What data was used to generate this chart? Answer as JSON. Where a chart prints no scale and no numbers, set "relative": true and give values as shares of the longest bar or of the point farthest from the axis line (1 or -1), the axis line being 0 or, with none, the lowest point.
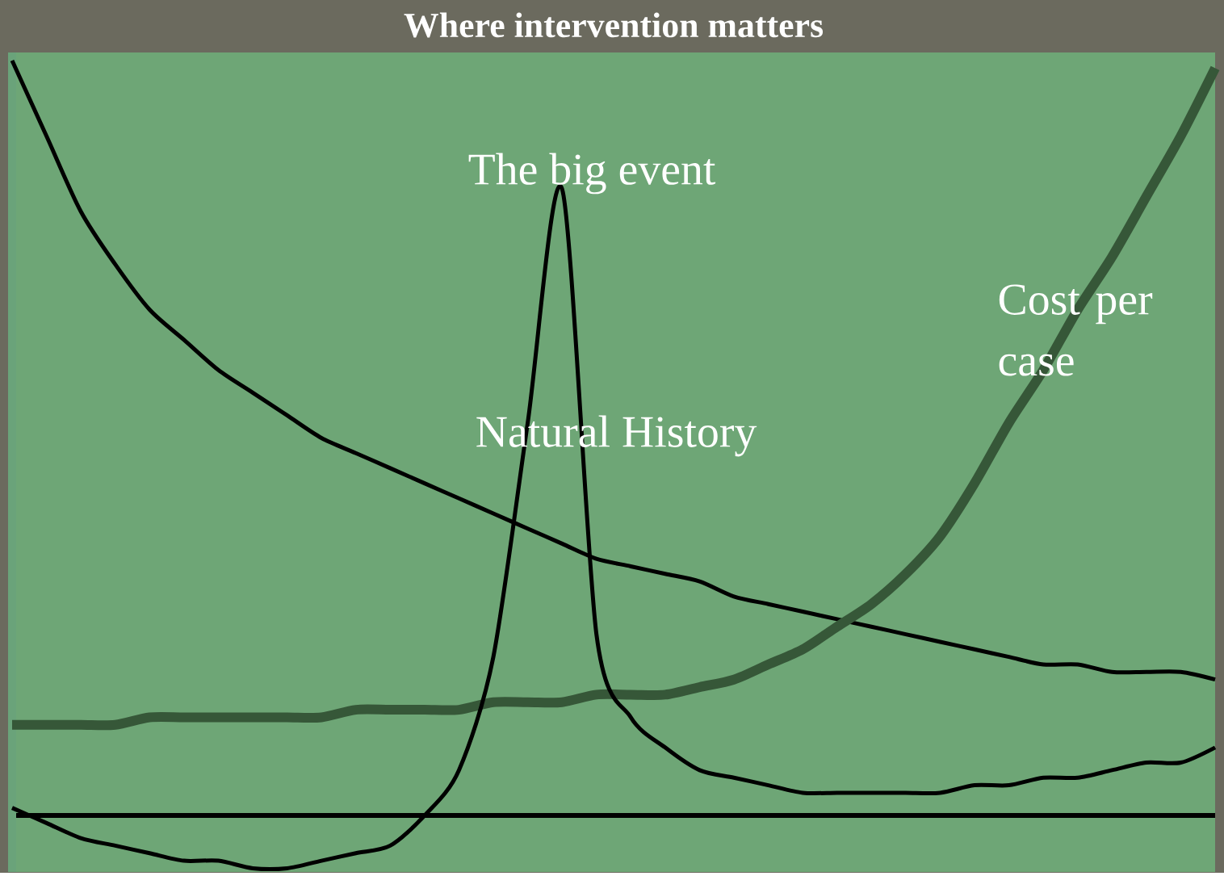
{
  "chart_data": {
    "type": "line",
    "title": "Where intervention matters",
    "relative": true,
    "marker": "none",
    "line_style": "solid",
    "annotations": [
      "The big event"
    ],
    "categories": [
      null,
      null,
      null,
      null,
      null,
      null,
      null,
      null,
      null,
      null,
      null,
      null,
      null,
      null,
      null,
      null,
      null,
      null,
      null,
      null,
      null,
      null,
      null,
      null,
      null,
      null,
      null,
      null,
      null,
      null,
      null,
      null,
      null,
      null,
      null,
      null
    ],
    "series": [
      {
        "color": "#000000",
        "values": [
          1.0,
          0.9,
          0.8,
          0.73,
          0.67,
          0.63,
          0.59,
          0.56,
          0.53,
          0.5,
          0.48,
          0.46,
          0.44,
          0.42,
          0.4,
          0.38,
          0.36,
          0.34,
          0.33,
          0.32,
          0.31,
          0.29,
          0.28,
          0.27,
          0.26,
          0.25,
          0.24,
          0.23,
          0.22,
          0.21,
          0.2,
          0.2,
          0.19,
          0.19,
          0.19,
          0.18
        ]
      },
      {
        "name": "Cost per case",
        "color": "#365738",
        "values": [
          0.12,
          0.12,
          0.12,
          0.12,
          0.13,
          0.13,
          0.13,
          0.13,
          0.13,
          0.13,
          0.14,
          0.14,
          0.14,
          0.14,
          0.15,
          0.15,
          0.15,
          0.16,
          0.16,
          0.16,
          0.17,
          0.18,
          0.2,
          0.22,
          0.25,
          0.28,
          0.32,
          0.37,
          0.44,
          0.52,
          0.59,
          0.67,
          0.74,
          0.82,
          0.9,
          0.99
        ]
      },
      {
        "name": "Natural History",
        "color": "#000000",
        "values": [
          0.01,
          -0.01,
          -0.03,
          -0.04,
          -0.05,
          -0.06,
          -0.06,
          -0.07,
          -0.07,
          -0.06,
          -0.05,
          -0.04,
          0.0,
          0.06,
          0.21,
          0.52,
          0.83,
          0.24,
          0.13,
          0.09,
          0.06,
          0.05,
          0.04,
          0.03,
          0.03,
          0.03,
          0.03,
          0.03,
          0.04,
          0.04,
          0.05,
          0.05,
          0.06,
          0.07,
          0.07,
          0.09
        ]
      }
    ]
  }
}
